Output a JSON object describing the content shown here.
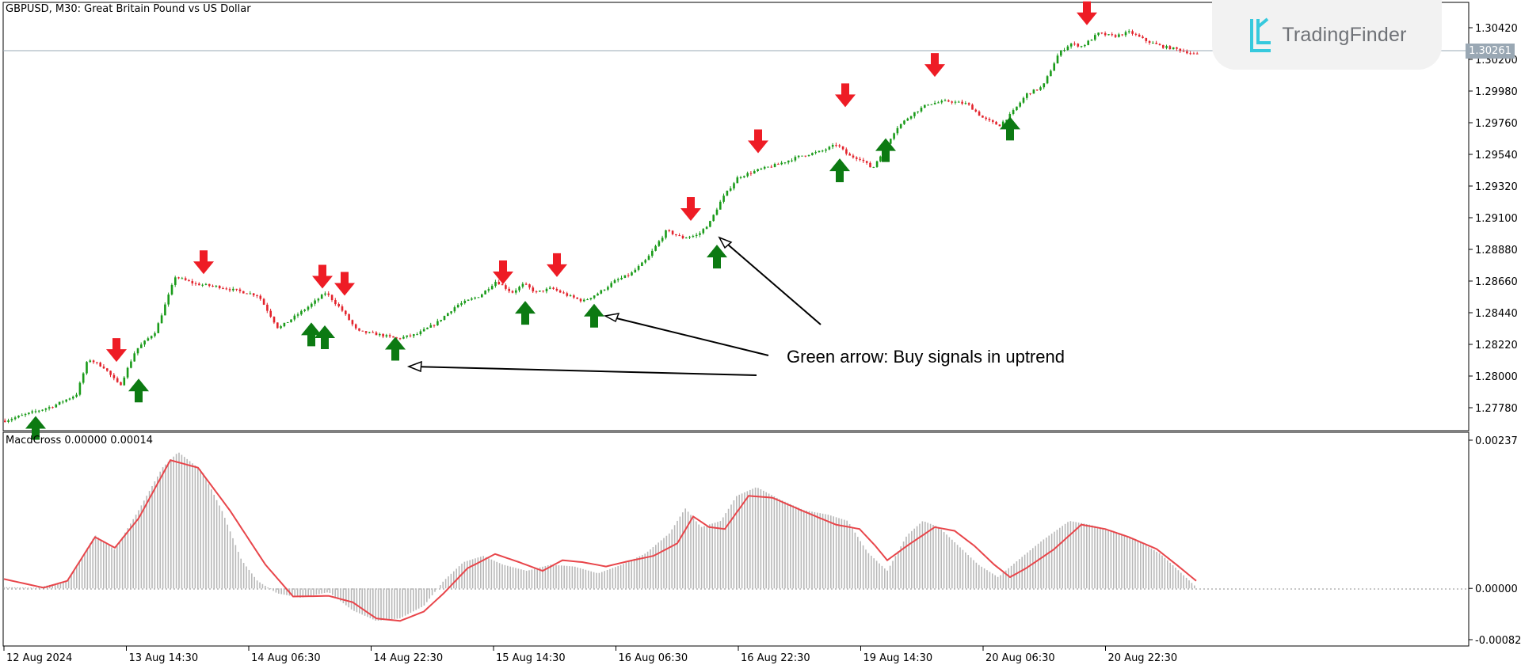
{
  "chart": {
    "symbol_title": "GBPUSD, M30:  Great Britain Pound vs US Dollar",
    "indicator_title": "MacdCross 0.00000 0.00014",
    "annotation": "Green arrow: Buy signals in uptrend",
    "brand": "TradingFinder",
    "current_price": "1.30261",
    "colors": {
      "bull_candle": "#1a9b1a",
      "bear_candle": "#e3232c",
      "buy_arrow": "#0c7a12",
      "sell_arrow": "#ee1c25",
      "macd_hist": "#b8b8b8",
      "signal_line": "#e8454a",
      "brand_icon": "#36c9dd"
    }
  },
  "chart_data": {
    "type": "candlestick",
    "price_axis": {
      "ticks": [
        "1.30420",
        "1.30200",
        "1.29980",
        "1.29760",
        "1.29540",
        "1.29320",
        "1.29100",
        "1.28880",
        "1.28660",
        "1.28440",
        "1.28220",
        "1.28000",
        "1.27780"
      ]
    },
    "indicator_axis": {
      "ticks": [
        "0.00237",
        "0.00000",
        "-0.00082"
      ]
    },
    "time_axis": {
      "ticks": [
        "12 Aug 2024",
        "13 Aug 14:30",
        "14 Aug 06:30",
        "14 Aug 22:30",
        "15 Aug 14:30",
        "16 Aug 06:30",
        "16 Aug 22:30",
        "19 Aug 14:30",
        "20 Aug 06:30",
        "20 Aug 22:30"
      ]
    },
    "price_path": [
      [
        0,
        1.2769
      ],
      [
        30,
        1.2774
      ],
      [
        60,
        1.2779
      ],
      [
        90,
        1.2787
      ],
      [
        105,
        1.2812
      ],
      [
        125,
        1.2806
      ],
      [
        145,
        1.2793
      ],
      [
        165,
        1.2818
      ],
      [
        190,
        1.2831
      ],
      [
        215,
        1.2869
      ],
      [
        240,
        1.2864
      ],
      [
        270,
        1.2862
      ],
      [
        295,
        1.2859
      ],
      [
        320,
        1.2856
      ],
      [
        345,
        1.2833
      ],
      [
        365,
        1.2841
      ],
      [
        385,
        1.2849
      ],
      [
        405,
        1.2858
      ],
      [
        425,
        1.2846
      ],
      [
        445,
        1.2831
      ],
      [
        470,
        1.2829
      ],
      [
        495,
        1.2826
      ],
      [
        520,
        1.2829
      ],
      [
        545,
        1.2837
      ],
      [
        570,
        1.2849
      ],
      [
        600,
        1.2856
      ],
      [
        620,
        1.2866
      ],
      [
        640,
        1.2858
      ],
      [
        655,
        1.2864
      ],
      [
        670,
        1.2858
      ],
      [
        690,
        1.2861
      ],
      [
        710,
        1.2856
      ],
      [
        730,
        1.2852
      ],
      [
        750,
        1.2858
      ],
      [
        770,
        1.2866
      ],
      [
        790,
        1.2871
      ],
      [
        810,
        1.2881
      ],
      [
        835,
        1.2901
      ],
      [
        855,
        1.2896
      ],
      [
        875,
        1.2898
      ],
      [
        890,
        1.2907
      ],
      [
        905,
        1.2923
      ],
      [
        925,
        1.2938
      ],
      [
        950,
        1.2943
      ],
      [
        975,
        1.2947
      ],
      [
        1005,
        1.2953
      ],
      [
        1030,
        1.2956
      ],
      [
        1050,
        1.2961
      ],
      [
        1065,
        1.2953
      ],
      [
        1080,
        1.2951
      ],
      [
        1095,
        1.2944
      ],
      [
        1110,
        1.2958
      ],
      [
        1125,
        1.2972
      ],
      [
        1145,
        1.2982
      ],
      [
        1165,
        1.2989
      ],
      [
        1190,
        1.2991
      ],
      [
        1215,
        1.2989
      ],
      [
        1235,
        1.2979
      ],
      [
        1255,
        1.2974
      ],
      [
        1270,
        1.2982
      ],
      [
        1290,
        1.2996
      ],
      [
        1310,
        1.3001
      ],
      [
        1330,
        1.3024
      ],
      [
        1345,
        1.3031
      ],
      [
        1360,
        1.3029
      ],
      [
        1380,
        1.3038
      ],
      [
        1400,
        1.3036
      ],
      [
        1420,
        1.3039
      ],
      [
        1440,
        1.3033
      ],
      [
        1460,
        1.3029
      ],
      [
        1480,
        1.3027
      ],
      [
        1505,
        1.3023
      ]
    ],
    "macd_path": [
      [
        0,
        2e-05
      ],
      [
        40,
        1e-05
      ],
      [
        80,
        0.00011
      ],
      [
        115,
        0.00085
      ],
      [
        140,
        0.00062
      ],
      [
        170,
        0.00125
      ],
      [
        200,
        0.00193
      ],
      [
        220,
        0.00218
      ],
      [
        250,
        0.00188
      ],
      [
        275,
        0.00125
      ],
      [
        300,
        0.00045
      ],
      [
        320,
        0.00012
      ],
      [
        345,
        -8e-05
      ],
      [
        375,
        -0.00015
      ],
      [
        410,
        -6e-05
      ],
      [
        440,
        -0.00035
      ],
      [
        470,
        -0.00052
      ],
      [
        500,
        -0.00048
      ],
      [
        530,
        -0.00028
      ],
      [
        555,
        0.00012
      ],
      [
        580,
        0.00042
      ],
      [
        605,
        0.00052
      ],
      [
        630,
        0.00038
      ],
      [
        660,
        0.00028
      ],
      [
        690,
        0.00038
      ],
      [
        720,
        0.00035
      ],
      [
        750,
        0.00024
      ],
      [
        780,
        0.00038
      ],
      [
        810,
        0.00056
      ],
      [
        840,
        0.00088
      ],
      [
        860,
        0.00128
      ],
      [
        880,
        0.00098
      ],
      [
        905,
        0.00108
      ],
      [
        925,
        0.00148
      ],
      [
        950,
        0.00162
      ],
      [
        980,
        0.00142
      ],
      [
        1010,
        0.00125
      ],
      [
        1040,
        0.00118
      ],
      [
        1065,
        0.00108
      ],
      [
        1090,
        0.00058
      ],
      [
        1115,
        0.00028
      ],
      [
        1140,
        0.00085
      ],
      [
        1160,
        0.00108
      ],
      [
        1180,
        0.00098
      ],
      [
        1205,
        0.00068
      ],
      [
        1230,
        0.00038
      ],
      [
        1255,
        0.00018
      ],
      [
        1280,
        0.00045
      ],
      [
        1310,
        0.00076
      ],
      [
        1345,
        0.00108
      ],
      [
        1370,
        0.00102
      ],
      [
        1400,
        0.00092
      ],
      [
        1430,
        0.00078
      ],
      [
        1460,
        0.00055
      ],
      [
        1480,
        0.00032
      ],
      [
        1505,
        2e-05
      ]
    ],
    "signal_path": [
      [
        0,
        0.00015
      ],
      [
        50,
        1e-05
      ],
      [
        80,
        0.00012
      ],
      [
        115,
        0.00082
      ],
      [
        140,
        0.00065
      ],
      [
        170,
        0.00112
      ],
      [
        210,
        0.00205
      ],
      [
        245,
        0.00193
      ],
      [
        285,
        0.00125
      ],
      [
        330,
        0.00038
      ],
      [
        365,
        -0.00013
      ],
      [
        410,
        -0.00012
      ],
      [
        440,
        -0.00022
      ],
      [
        470,
        -0.00048
      ],
      [
        500,
        -0.00052
      ],
      [
        530,
        -0.00037
      ],
      [
        555,
        -8e-05
      ],
      [
        585,
        0.00032
      ],
      [
        620,
        0.00055
      ],
      [
        650,
        0.00042
      ],
      [
        680,
        0.00028
      ],
      [
        705,
        0.00045
      ],
      [
        730,
        0.00042
      ],
      [
        760,
        0.00035
      ],
      [
        790,
        0.00044
      ],
      [
        820,
        0.00052
      ],
      [
        850,
        0.00072
      ],
      [
        870,
        0.00115
      ],
      [
        890,
        0.00098
      ],
      [
        910,
        0.00095
      ],
      [
        940,
        0.00148
      ],
      [
        970,
        0.00145
      ],
      [
        1010,
        0.00123
      ],
      [
        1050,
        0.00102
      ],
      [
        1080,
        0.00095
      ],
      [
        1100,
        0.00068
      ],
      [
        1115,
        0.00045
      ],
      [
        1140,
        0.00068
      ],
      [
        1175,
        0.00098
      ],
      [
        1200,
        0.00092
      ],
      [
        1225,
        0.00068
      ],
      [
        1250,
        0.00038
      ],
      [
        1270,
        0.00018
      ],
      [
        1290,
        0.00032
      ],
      [
        1325,
        0.00062
      ],
      [
        1360,
        0.00102
      ],
      [
        1390,
        0.00095
      ],
      [
        1420,
        0.00082
      ],
      [
        1455,
        0.00063
      ],
      [
        1480,
        0.00038
      ],
      [
        1505,
        0.00012
      ]
    ],
    "buy_arrows": [
      [
        40,
        1.277
      ],
      [
        170,
        1.2796
      ],
      [
        388,
        1.2835
      ],
      [
        405,
        1.2833
      ],
      [
        494,
        1.2825
      ],
      [
        658,
        1.285
      ],
      [
        745,
        1.2848
      ],
      [
        900,
        1.2889
      ],
      [
        1055,
        1.2949
      ],
      [
        1113,
        1.2963
      ],
      [
        1270,
        1.2978
      ]
    ],
    "sell_arrows": [
      [
        142,
        1.2812
      ],
      [
        252,
        1.2873
      ],
      [
        402,
        1.2863
      ],
      [
        430,
        1.2858
      ],
      [
        630,
        1.2866
      ],
      [
        698,
        1.2871
      ],
      [
        867,
        1.291
      ],
      [
        952,
        1.2957
      ],
      [
        1062,
        1.2989
      ],
      [
        1175,
        1.301
      ],
      [
        1367,
        1.3046
      ]
    ]
  }
}
